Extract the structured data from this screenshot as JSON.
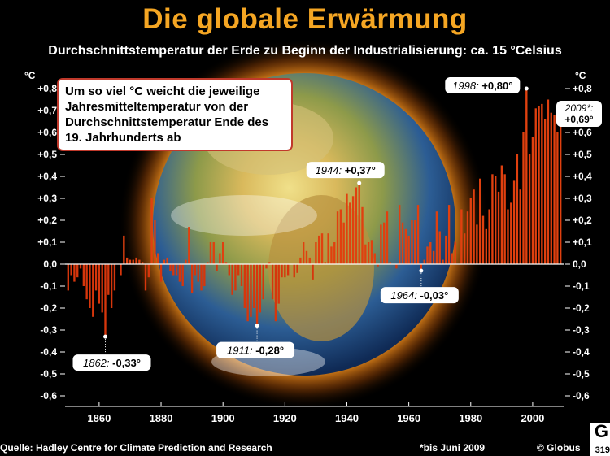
{
  "title": "Die globale Erwärmung",
  "subtitle": "Durchschnittstemperatur der Erde zu Beginn der Industrialisierung: ca. 15 °Celsius",
  "info_text": "Um so viel °C weicht die jeweilige Jahresmitteltemperatur von der Durchschnittstemperatur Ende des 19. Jahrhunderts ab",
  "footer": {
    "source": "Quelle: Hadley Centre for Climate Prediction and Research",
    "note": "*bis Juni 2009",
    "credit": "© Globus",
    "badge_letter": "G",
    "badge_number": "319"
  },
  "colors": {
    "title": "#f5a623",
    "bar_positive": "#e0400f",
    "bar_negative": "#d6360c",
    "callout_border": "#c0392b"
  },
  "chart_data": {
    "type": "bar",
    "title": "Die globale Erwärmung",
    "ylabel": "°C",
    "ylim": [
      -0.65,
      0.85
    ],
    "yticks": [
      "+0,8",
      "+0,7",
      "+0,6",
      "+0,5",
      "+0,4",
      "+0,3",
      "+0,2",
      "+0,1",
      "0,0",
      "-0,1",
      "-0,2",
      "-0,3",
      "-0,4",
      "-0,5",
      "-0,6"
    ],
    "xticks": [
      "1860",
      "1880",
      "1900",
      "1920",
      "1940",
      "1960",
      "1980",
      "2000"
    ],
    "xlim": [
      1849,
      2010
    ],
    "x": [
      1850,
      1851,
      1852,
      1853,
      1854,
      1855,
      1856,
      1857,
      1858,
      1859,
      1860,
      1861,
      1862,
      1863,
      1864,
      1865,
      1866,
      1867,
      1868,
      1869,
      1870,
      1871,
      1872,
      1873,
      1874,
      1875,
      1876,
      1877,
      1878,
      1879,
      1880,
      1881,
      1882,
      1883,
      1884,
      1885,
      1886,
      1887,
      1888,
      1889,
      1890,
      1891,
      1892,
      1893,
      1894,
      1895,
      1896,
      1897,
      1898,
      1899,
      1900,
      1901,
      1902,
      1903,
      1904,
      1905,
      1906,
      1907,
      1908,
      1909,
      1910,
      1911,
      1912,
      1913,
      1914,
      1915,
      1916,
      1917,
      1918,
      1919,
      1920,
      1921,
      1922,
      1923,
      1924,
      1925,
      1926,
      1927,
      1928,
      1929,
      1930,
      1931,
      1932,
      1933,
      1934,
      1935,
      1936,
      1937,
      1938,
      1939,
      1940,
      1941,
      1942,
      1943,
      1944,
      1945,
      1946,
      1947,
      1948,
      1949,
      1950,
      1951,
      1952,
      1953,
      1954,
      1955,
      1956,
      1957,
      1958,
      1959,
      1960,
      1961,
      1962,
      1963,
      1964,
      1965,
      1966,
      1967,
      1968,
      1969,
      1970,
      1971,
      1972,
      1973,
      1974,
      1975,
      1976,
      1977,
      1978,
      1979,
      1980,
      1981,
      1982,
      1983,
      1984,
      1985,
      1986,
      1987,
      1988,
      1989,
      1990,
      1991,
      1992,
      1993,
      1994,
      1995,
      1996,
      1997,
      1998,
      1999,
      2000,
      2001,
      2002,
      2003,
      2004,
      2005,
      2006,
      2007,
      2008,
      2009
    ],
    "values": [
      -0.12,
      -0.05,
      -0.08,
      -0.06,
      -0.02,
      -0.1,
      -0.16,
      -0.2,
      -0.24,
      -0.12,
      -0.18,
      -0.22,
      -0.33,
      -0.14,
      -0.2,
      -0.12,
      0.0,
      -0.05,
      0.13,
      0.03,
      0.02,
      0.02,
      0.03,
      0.02,
      0.01,
      -0.12,
      -0.06,
      0.3,
      0.2,
      0.05,
      -0.08,
      0.02,
      0.03,
      -0.03,
      -0.05,
      -0.05,
      -0.08,
      -0.1,
      0.02,
      0.17,
      -0.13,
      -0.05,
      -0.08,
      -0.12,
      -0.1,
      0.01,
      0.1,
      0.1,
      -0.03,
      0.05,
      0.1,
      0.01,
      -0.05,
      -0.14,
      -0.12,
      -0.05,
      -0.1,
      -0.2,
      -0.26,
      -0.24,
      -0.2,
      -0.28,
      -0.22,
      -0.16,
      -0.02,
      0.01,
      -0.16,
      -0.26,
      -0.18,
      -0.06,
      -0.06,
      -0.05,
      0.0,
      -0.06,
      -0.04,
      0.03,
      0.1,
      0.06,
      0.03,
      -0.07,
      0.1,
      0.13,
      0.14,
      0.01,
      0.14,
      0.08,
      0.1,
      0.24,
      0.25,
      0.19,
      0.32,
      0.28,
      0.31,
      0.35,
      0.37,
      0.26,
      0.09,
      0.1,
      0.11,
      0.05,
      -0.01,
      0.18,
      0.19,
      0.24,
      0.01,
      0.0,
      -0.02,
      0.27,
      0.19,
      0.16,
      0.13,
      0.2,
      0.2,
      0.27,
      -0.03,
      0.02,
      0.08,
      0.1,
      0.06,
      0.24,
      0.15,
      0.02,
      0.13,
      0.27,
      0.05,
      0.1,
      0.0,
      0.25,
      0.14,
      0.24,
      0.3,
      0.34,
      0.18,
      0.39,
      0.22,
      0.16,
      0.25,
      0.41,
      0.4,
      0.33,
      0.45,
      0.41,
      0.25,
      0.28,
      0.38,
      0.5,
      0.34,
      0.6,
      0.8,
      0.5,
      0.58,
      0.71,
      0.72,
      0.73,
      0.66,
      0.75,
      0.69,
      0.68,
      0.6,
      0.69
    ],
    "annotations": [
      {
        "year": 1862,
        "label_year": "1862:",
        "label_value": "-0,33°"
      },
      {
        "year": 1911,
        "label_year": "1911:",
        "label_value": "-0,28°"
      },
      {
        "year": 1944,
        "label_year": "1944:",
        "label_value": "+0,37°"
      },
      {
        "year": 1964,
        "label_year": "1964:",
        "label_value": "-0,03°"
      },
      {
        "year": 1998,
        "label_year": "1998:",
        "label_value": "+0,80°"
      },
      {
        "year": 2009,
        "label_year": "2009*:",
        "label_value": "+0,69°"
      }
    ]
  }
}
